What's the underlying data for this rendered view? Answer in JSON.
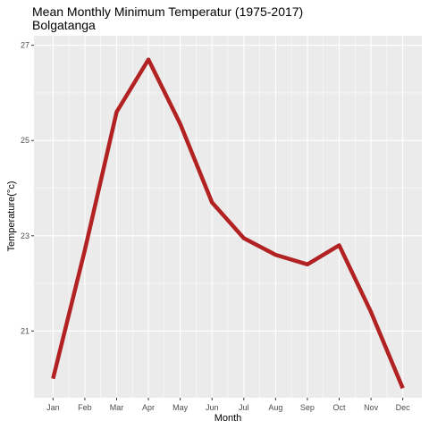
{
  "chart_data": {
    "type": "line",
    "title": "Mean Monthly Minimum Temperatur (1975-2017)",
    "subtitle": "Bolgatanga",
    "xlabel": "Month",
    "ylabel": "Temperature(°c)",
    "categories": [
      "Jan",
      "Feb",
      "Mar",
      "Apr",
      "May",
      "Jun",
      "Jul",
      "Aug",
      "Sep",
      "Oct",
      "Nov",
      "Dec"
    ],
    "series": [
      {
        "values": [
          20.0,
          22.7,
          25.6,
          26.7,
          25.35,
          23.7,
          22.95,
          22.6,
          22.4,
          22.8,
          21.4,
          19.8
        ],
        "color": "#B22222"
      }
    ],
    "ylim": [
      19.6,
      27.2
    ],
    "yticks": [
      21,
      23,
      25,
      27
    ],
    "ytick_labels": [
      "21",
      "23",
      "25",
      "27"
    ],
    "grid": true,
    "legend": "none",
    "panel_background": "#EBEBEB",
    "grid_color": "#FFFFFF"
  }
}
